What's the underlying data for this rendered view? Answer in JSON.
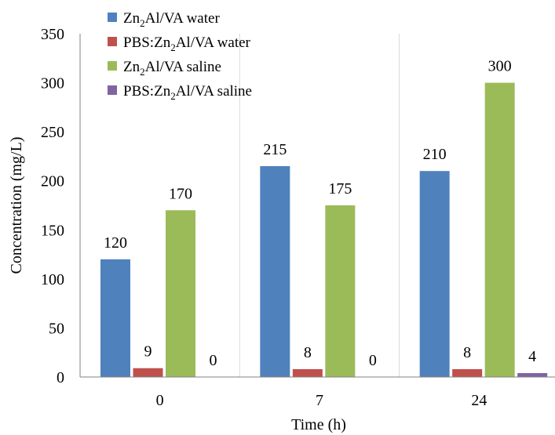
{
  "chart_data": {
    "type": "bar",
    "title": "",
    "xlabel": "Time (h)",
    "ylabel": "Concentration (mg/L)",
    "categories": [
      "0",
      "7",
      "24"
    ],
    "ylim": [
      0,
      350
    ],
    "yticks": [
      0,
      50,
      100,
      150,
      200,
      250,
      300,
      350
    ],
    "grid": "vertical category separators",
    "legend_position": "top-left",
    "series": [
      {
        "name_parts": [
          "Zn",
          "2",
          "Al/VA water"
        ],
        "color": "#4f81bd",
        "values": [
          120,
          215,
          210
        ],
        "labels": [
          "120",
          "215",
          "210"
        ]
      },
      {
        "name_parts": [
          "PBS:Zn",
          "2",
          "Al/VA water"
        ],
        "color": "#c0504d",
        "values": [
          9,
          8,
          8
        ],
        "labels": [
          "9",
          "8",
          "8"
        ]
      },
      {
        "name_parts": [
          "Zn",
          "2",
          "Al/VA saline"
        ],
        "color": "#9bbb59",
        "values": [
          170,
          175,
          300
        ],
        "labels": [
          "170",
          "175",
          "300"
        ]
      },
      {
        "name_parts": [
          "PBS:Zn",
          "2",
          "Al/VA saline"
        ],
        "color": "#8064a2",
        "values": [
          0,
          0,
          4
        ],
        "labels": [
          "0",
          "0",
          "4"
        ]
      }
    ]
  }
}
